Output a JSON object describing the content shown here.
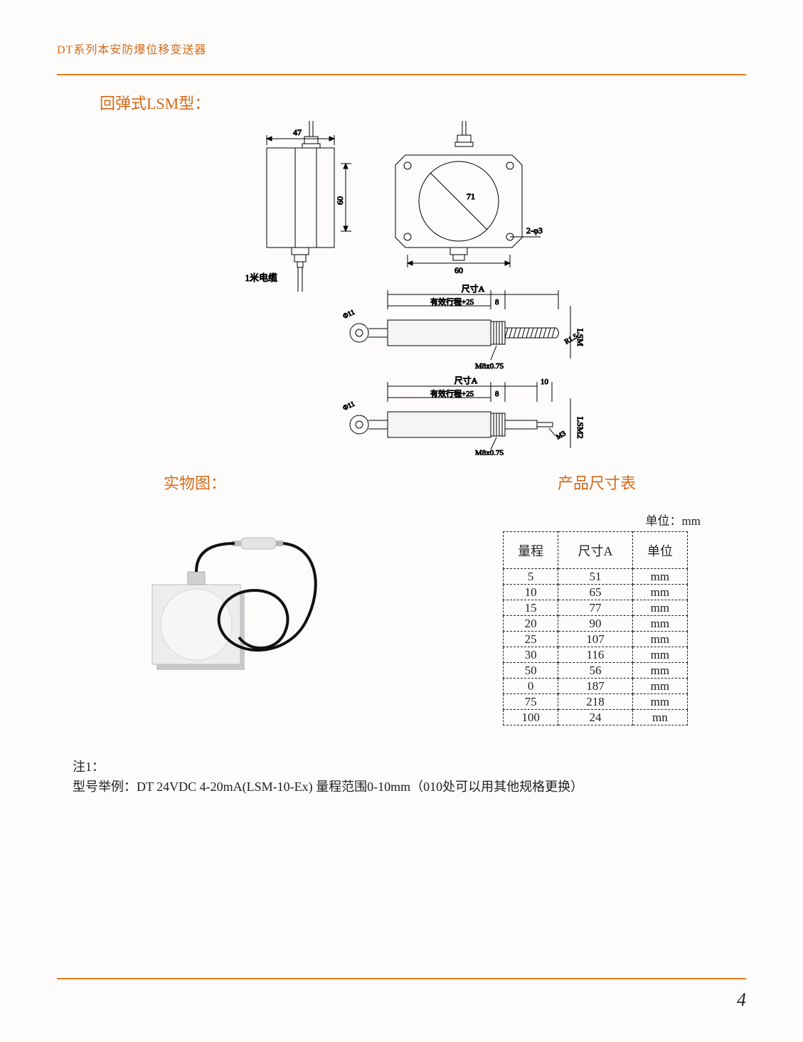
{
  "header": {
    "title": "DT系列本安防爆位移变送器"
  },
  "section1_title": "回弹式LSM型：",
  "diagram": {
    "top_dim": "47",
    "side_dim": "60",
    "cable_label": "1米电缆",
    "face_inner": "71",
    "face_outer": "60",
    "hole_label": "2-φ3",
    "cyl1": {
      "sizeA": "尺寸A",
      "stroke": "有效行程+25",
      "gap": "8",
      "thread": "M8x0.75",
      "type": "LSM",
      "radius": "R1.5",
      "dia": "Φ11"
    },
    "cyl2": {
      "sizeA": "尺寸A",
      "stroke": "有效行程+25",
      "gap": "8",
      "ext": "10",
      "thread": "M8x0.75",
      "type": "LSM2",
      "m3": "M3",
      "dia": "Φ11"
    }
  },
  "photo_title": "实物图：",
  "table_title": "产品尺寸表",
  "unit_label": "单位：mm",
  "table": {
    "headers": [
      "量程",
      "尺寸A",
      "单位"
    ],
    "rows": [
      [
        "5",
        "51",
        "mm"
      ],
      [
        "10",
        "65",
        "mm"
      ],
      [
        "15",
        "77",
        "mm"
      ],
      [
        "20",
        "90",
        "mm"
      ],
      [
        "25",
        "107",
        "mm"
      ],
      [
        "30",
        "116",
        "mm"
      ],
      [
        "50",
        "56",
        "mm"
      ],
      [
        "0",
        "187",
        "mm"
      ],
      [
        "75",
        "218",
        "mm"
      ],
      [
        "100",
        "24",
        "mn"
      ]
    ]
  },
  "notes": {
    "line1": "注1：",
    "line2": "型号举例：DT 24VDC 4-20mA(LSM-10-Ex)   量程范围0-10mm（010处可以用其他规格更换）"
  },
  "page_number": "4",
  "colors": {
    "accent": "#e67817",
    "title_text": "#d46a1a",
    "text": "#222222"
  }
}
